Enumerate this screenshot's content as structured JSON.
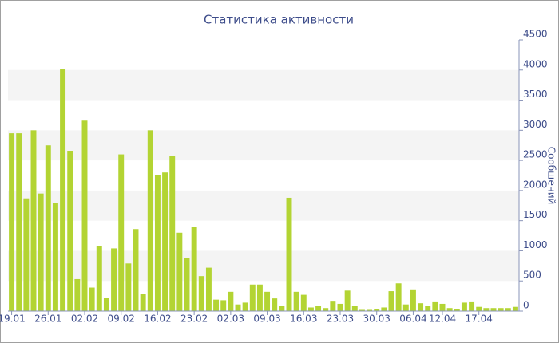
{
  "chart_data": {
    "type": "bar",
    "title": "Статистика активности",
    "y_label": "Сообщений",
    "categories": [
      "19.01",
      null,
      null,
      null,
      null,
      "26.01",
      null,
      null,
      null,
      null,
      "02.02",
      null,
      null,
      null,
      null,
      "09.02",
      null,
      null,
      null,
      null,
      "16.02",
      null,
      null,
      null,
      null,
      "23.02",
      null,
      null,
      null,
      null,
      "02.03",
      null,
      null,
      null,
      null,
      "09.03",
      null,
      null,
      null,
      null,
      "16.03",
      null,
      null,
      null,
      null,
      "23.03",
      null,
      null,
      null,
      null,
      "30.03",
      null,
      null,
      null,
      null,
      "06.04",
      null,
      null,
      null,
      "12.04",
      null,
      null,
      null,
      null,
      "17.04",
      null,
      null,
      null,
      null,
      null
    ],
    "values": [
      2950,
      2950,
      1870,
      3000,
      1950,
      2750,
      1790,
      4010,
      2660,
      530,
      3160,
      390,
      1080,
      220,
      1040,
      2600,
      790,
      1360,
      290,
      3000,
      2250,
      2300,
      2570,
      1300,
      880,
      1400,
      580,
      720,
      190,
      180,
      320,
      110,
      140,
      440,
      440,
      320,
      210,
      90,
      1880,
      320,
      270,
      60,
      80,
      50,
      170,
      120,
      340,
      80,
      20,
      20,
      30,
      60,
      330,
      460,
      110,
      360,
      130,
      80,
      160,
      120,
      50,
      30,
      140,
      160,
      70,
      50,
      50,
      50,
      50,
      70
    ],
    "color": "#b3d433",
    "ylim": [
      0,
      4500
    ],
    "yticks": [
      0,
      500,
      1000,
      1500,
      2000,
      2500,
      3000,
      3500,
      4000,
      4500
    ],
    "alternate_bands": true,
    "band_color": "#f4f4f4"
  }
}
